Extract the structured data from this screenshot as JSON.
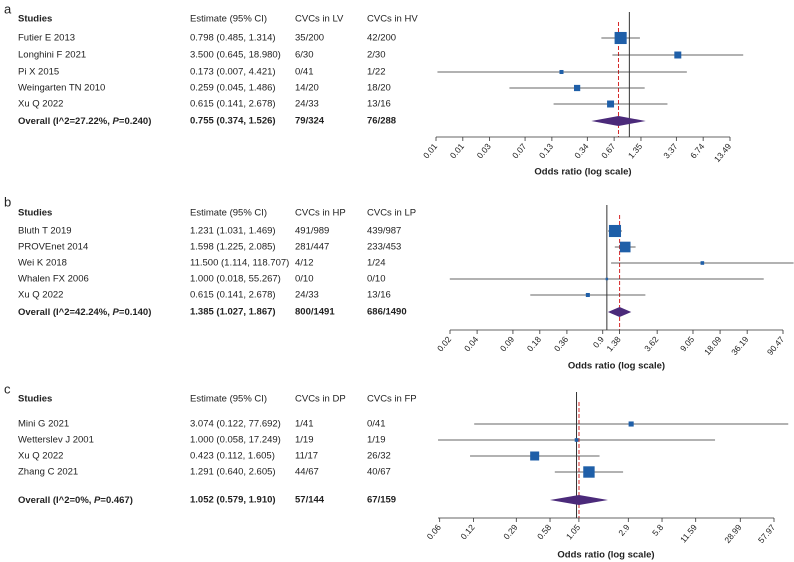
{
  "chart_data": [
    {
      "type": "forest",
      "panel": "a",
      "columns": [
        "Studies",
        "Estimate (95% CI)",
        "CVCs in LV",
        "CVCs in HV"
      ],
      "categories": [
        "Futier E 2013",
        "Longhini F 2021",
        "Pi X 2015",
        "Weingarten TN 2010",
        "Xu Q 2022"
      ],
      "values": [
        0.798,
        3.5,
        0.173,
        0.259,
        0.615
      ],
      "lower": [
        0.485,
        0.645,
        0.007,
        0.045,
        0.141
      ],
      "upper": [
        1.314,
        18.98,
        4.421,
        1.486,
        2.678
      ],
      "value_labels": [
        "0.798 (0.485, 1.314)",
        "3.500 (0.645, 18.980)",
        "0.173 (0.007, 4.421)",
        "0.259 (0.045, 1.486)",
        "0.615 (0.141, 2.678)"
      ],
      "group1": [
        "35/200",
        "6/30",
        "0/41",
        "14/20",
        "24/33"
      ],
      "group2": [
        "42/200",
        "2/30",
        "1/22",
        "18/20",
        "13/16"
      ],
      "weights": [
        45,
        15,
        5,
        12,
        15
      ],
      "overall": {
        "label": [
          "Overall (I^2=27.22%, ",
          "P",
          "=0.240)"
        ],
        "value": 0.755,
        "lower": 0.374,
        "upper": 1.526,
        "value_label": "0.755 (0.374, 1.526)",
        "group1": "79/324",
        "group2": "76/288"
      },
      "xlabel": "Odds ratio (log scale)",
      "log_scale": true,
      "reference_line": 1,
      "xlim": [
        0.006745,
        13.49
      ],
      "xticks": [
        {
          "value": 0.006745,
          "label": "0.01"
        },
        {
          "value": 0.01349,
          "label": "0.01"
        },
        {
          "value": 0.02698,
          "label": "0.03"
        },
        {
          "value": 0.06745,
          "label": "0.07"
        },
        {
          "value": 0.1349,
          "label": "0.13"
        },
        {
          "value": 0.3373,
          "label": "0.34"
        },
        {
          "value": 0.6745,
          "label": "0.67"
        },
        1.35,
        3.37,
        6.74,
        13.49
      ],
      "color": "#1f5fa8",
      "overall_color": "#4b2a7a",
      "dashed_color": "#d62728"
    },
    {
      "type": "forest",
      "panel": "b",
      "columns": [
        "Studies",
        "Estimate (95% CI)",
        "CVCs in HP",
        "CVCs in LP"
      ],
      "categories": [
        "Bluth T 2019",
        "PROVEnet 2014",
        "Wei K 2018",
        "Whalen FX 2006",
        "Xu Q 2022"
      ],
      "values": [
        1.231,
        1.598,
        11.5,
        1.0,
        0.615
      ],
      "lower": [
        1.031,
        1.225,
        1.114,
        0.018,
        0.141
      ],
      "upper": [
        1.469,
        2.085,
        118.707,
        55.267,
        2.678
      ],
      "value_labels": [
        "1.231 (1.031, 1.469)",
        "1.598 (1.225, 2.085)",
        "11.500 (1.114, 118.707)",
        "1.000 (0.018, 55.267)",
        "0.615 (0.141, 2.678)"
      ],
      "group1": [
        "491/989",
        "281/447",
        "4/12",
        "0/10",
        "24/33"
      ],
      "group2": [
        "439/987",
        "233/453",
        "1/24",
        "0/10",
        "13/16"
      ],
      "weights": [
        45,
        35,
        4,
        1,
        5
      ],
      "overall": {
        "label": [
          "Overall (I^2=42.24%, ",
          "P",
          "=0.140)"
        ],
        "value": 1.385,
        "lower": 1.027,
        "upper": 1.867,
        "value_label": "1.385 (1.027, 1.867)",
        "group1": "800/1491",
        "group2": "686/1490"
      },
      "xlabel": "Odds ratio (log scale)",
      "log_scale": true,
      "reference_line": 1,
      "xlim": [
        0.0181,
        90.47
      ],
      "xticks": [
        {
          "value": 0.0181,
          "label": "0.02"
        },
        {
          "value": 0.0362,
          "label": "0.04"
        },
        {
          "value": 0.0905,
          "label": "0.09"
        },
        0.18,
        0.36,
        0.9,
        1.38,
        3.62,
        9.05,
        18.09,
        36.19,
        90.47
      ],
      "color": "#1f5fa8",
      "overall_color": "#4b2a7a",
      "dashed_color": "#d62728"
    },
    {
      "type": "forest",
      "panel": "c",
      "columns": [
        "Studies",
        "Estimate (95% CI)",
        "CVCs in DP",
        "CVCs in FP"
      ],
      "categories": [
        "Mini G 2021",
        "Wetterslev J 2001",
        "Xu Q 2022",
        "Zhang C 2021"
      ],
      "values": [
        3.074,
        1.0,
        0.423,
        1.291
      ],
      "lower": [
        0.122,
        0.058,
        0.112,
        0.64
      ],
      "upper": [
        77.692,
        17.249,
        1.605,
        2.605
      ],
      "value_labels": [
        "3.074 (0.122, 77.692)",
        "1.000 (0.058, 17.249)",
        "0.423 (0.112, 1.605)",
        "1.291 (0.640, 2.605)"
      ],
      "group1": [
        "1/41",
        "1/19",
        "11/17",
        "44/67"
      ],
      "group2": [
        "0/41",
        "1/19",
        "26/32",
        "40/67"
      ],
      "weights": [
        8,
        4,
        25,
        40
      ],
      "overall": {
        "label": [
          "Overall (I^2=0%, ",
          "P",
          "=0.467)"
        ],
        "value": 1.052,
        "lower": 0.579,
        "upper": 1.91,
        "value_label": "1.052 (0.579, 1.910)",
        "group1": "57/144",
        "group2": "67/159"
      },
      "xlabel": "Odds ratio (log scale)",
      "log_scale": true,
      "reference_line": 1,
      "xlim": [
        0.05797,
        57.97
      ],
      "xticks": [
        0.06,
        0.12,
        0.29,
        0.58,
        1.05,
        2.9,
        5.8,
        11.59,
        28.99,
        57.97
      ],
      "color": "#1f5fa8",
      "overall_color": "#4b2a7a",
      "dashed_color": "#d62728"
    }
  ]
}
